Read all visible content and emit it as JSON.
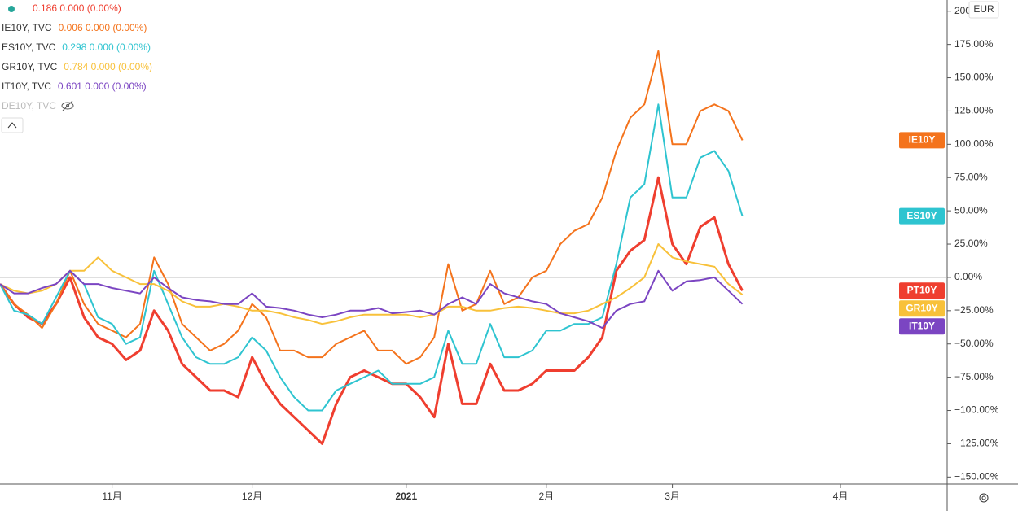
{
  "chart_data": {
    "type": "line",
    "currency": "EUR",
    "hidden_series": "DE10Y, TVC",
    "categories": [
      null,
      null,
      null,
      null,
      null,
      null,
      null,
      null,
      "11月",
      null,
      null,
      null,
      null,
      null,
      null,
      null,
      null,
      null,
      "12月",
      null,
      null,
      null,
      null,
      null,
      null,
      null,
      null,
      null,
      null,
      "2021",
      null,
      null,
      null,
      null,
      null,
      null,
      null,
      null,
      null,
      "2月",
      null,
      null,
      null,
      null,
      null,
      null,
      null,
      null,
      "3月",
      null,
      null,
      null,
      null,
      null,
      null,
      null,
      null,
      null,
      null,
      null,
      "4月",
      null,
      null,
      null,
      null,
      null,
      null,
      null
    ],
    "ylim": [
      -155.3,
      208.4
    ],
    "yticks": [
      {
        "value": -150,
        "label": "−150.00%"
      },
      {
        "value": -125,
        "label": "−125.00%"
      },
      {
        "value": -100,
        "label": "−100.00%"
      },
      {
        "value": -75,
        "label": "−75.00%"
      },
      {
        "value": -50,
        "label": "−50.00%"
      },
      {
        "value": -25,
        "label": "−25.00%"
      },
      {
        "value": 0,
        "label": "0.00%"
      },
      {
        "value": 25,
        "label": "25.00%"
      },
      {
        "value": 50,
        "label": "50.00%"
      },
      {
        "value": 75,
        "label": "75.00%"
      },
      {
        "value": 100,
        "label": "100.00%"
      },
      {
        "value": 125,
        "label": "125.00%"
      },
      {
        "value": 150,
        "label": "150.00%"
      },
      {
        "value": 175,
        "label": "175.00%"
      },
      {
        "value": 200,
        "label": "200.00%"
      }
    ],
    "series": [
      {
        "name": "PT10Y",
        "legend_value": "0.186 0.000 (0.00%)",
        "color": "#ef3e2f",
        "width": 3,
        "values": [
          -5,
          -20,
          -30,
          -35,
          -20,
          0,
          -30,
          -45,
          -50,
          -62,
          -55,
          -25,
          -40,
          -65,
          -75,
          -85,
          -85,
          -90,
          -60,
          -80,
          -95,
          -105,
          -115,
          -125,
          -95,
          -75,
          -70,
          -75,
          -80,
          -80,
          -90,
          -105,
          -50,
          -95,
          -95,
          -65,
          -85,
          -85,
          -80,
          -70,
          -70,
          -70,
          -60,
          -45,
          5,
          20,
          28,
          75,
          25,
          10,
          38,
          45,
          10,
          -10,
          null,
          null,
          null,
          null,
          null,
          null,
          null,
          null,
          null,
          null,
          null,
          null,
          null,
          null
        ]
      },
      {
        "name": "IE10Y",
        "legend_label": "IE10Y, TVC",
        "legend_value": "0.006 0.000 (0.00%)",
        "color": "#f4731c",
        "width": 2,
        "values": [
          -5,
          -20,
          -28,
          -38,
          -20,
          5,
          -20,
          -35,
          -40,
          -45,
          -35,
          15,
          -5,
          -35,
          -45,
          -55,
          -50,
          -40,
          -20,
          -30,
          -55,
          -55,
          -60,
          -60,
          -50,
          -45,
          -40,
          -55,
          -55,
          -65,
          -60,
          -45,
          10,
          -25,
          -20,
          5,
          -20,
          -15,
          0,
          5,
          25,
          35,
          40,
          60,
          95,
          120,
          130,
          170,
          100,
          100,
          125,
          130,
          125,
          103,
          null,
          null,
          null,
          null,
          null,
          null,
          null,
          null,
          null,
          null,
          null,
          null,
          null,
          null
        ]
      },
      {
        "name": "ES10Y",
        "legend_label": "ES10Y, TVC",
        "legend_value": "0.298 0.000 (0.00%)",
        "color": "#2ec4d0",
        "width": 2,
        "values": [
          -5,
          -25,
          -28,
          -35,
          -15,
          5,
          -5,
          -30,
          -35,
          -50,
          -45,
          5,
          -20,
          -45,
          -60,
          -65,
          -65,
          -60,
          -45,
          -55,
          -75,
          -90,
          -100,
          -100,
          -85,
          -80,
          -75,
          -70,
          -80,
          -80,
          -80,
          -75,
          -40,
          -65,
          -65,
          -35,
          -60,
          -60,
          -55,
          -40,
          -40,
          -35,
          -35,
          -30,
          10,
          60,
          70,
          130,
          60,
          60,
          90,
          95,
          80,
          46,
          null,
          null,
          null,
          null,
          null,
          null,
          null,
          null,
          null,
          null,
          null,
          null,
          null,
          null
        ]
      },
      {
        "name": "GR10Y",
        "legend_label": "GR10Y, TVC",
        "legend_value": "0.784 0.000 (0.00%)",
        "color": "#f8c13a",
        "width": 2,
        "values": [
          -5,
          -10,
          -12,
          -10,
          -5,
          5,
          5,
          15,
          5,
          0,
          -5,
          -5,
          -10,
          -18,
          -22,
          -22,
          -20,
          -22,
          -25,
          -25,
          -27,
          -30,
          -32,
          -35,
          -33,
          -30,
          -28,
          -28,
          -28,
          -28,
          -30,
          -28,
          -22,
          -22,
          -25,
          -25,
          -23,
          -22,
          -23,
          -25,
          -27,
          -27,
          -25,
          -20,
          -15,
          -8,
          0,
          25,
          15,
          12,
          10,
          8,
          -5,
          -13,
          null,
          null,
          null,
          null,
          null,
          null,
          null,
          null,
          null,
          null,
          null,
          null,
          null,
          null
        ]
      },
      {
        "name": "IT10Y",
        "legend_label": "IT10Y, TVC",
        "legend_value": "0.601 0.000 (0.00%)",
        "color": "#7b45c2",
        "width": 2,
        "values": [
          -5,
          -12,
          -12,
          -8,
          -5,
          5,
          -5,
          -5,
          -8,
          -10,
          -12,
          0,
          -8,
          -15,
          -17,
          -18,
          -20,
          -20,
          -12,
          -22,
          -23,
          -25,
          -28,
          -30,
          -28,
          -25,
          -25,
          -23,
          -27,
          -26,
          -25,
          -28,
          -20,
          -15,
          -20,
          -5,
          -12,
          -15,
          -18,
          -20,
          -27,
          -30,
          -33,
          -38,
          -25,
          -20,
          -18,
          5,
          -10,
          -3,
          -2,
          0,
          -10,
          -20,
          null,
          null,
          null,
          null,
          null,
          null,
          null,
          null,
          null,
          null,
          null,
          null,
          null,
          null
        ]
      }
    ]
  }
}
